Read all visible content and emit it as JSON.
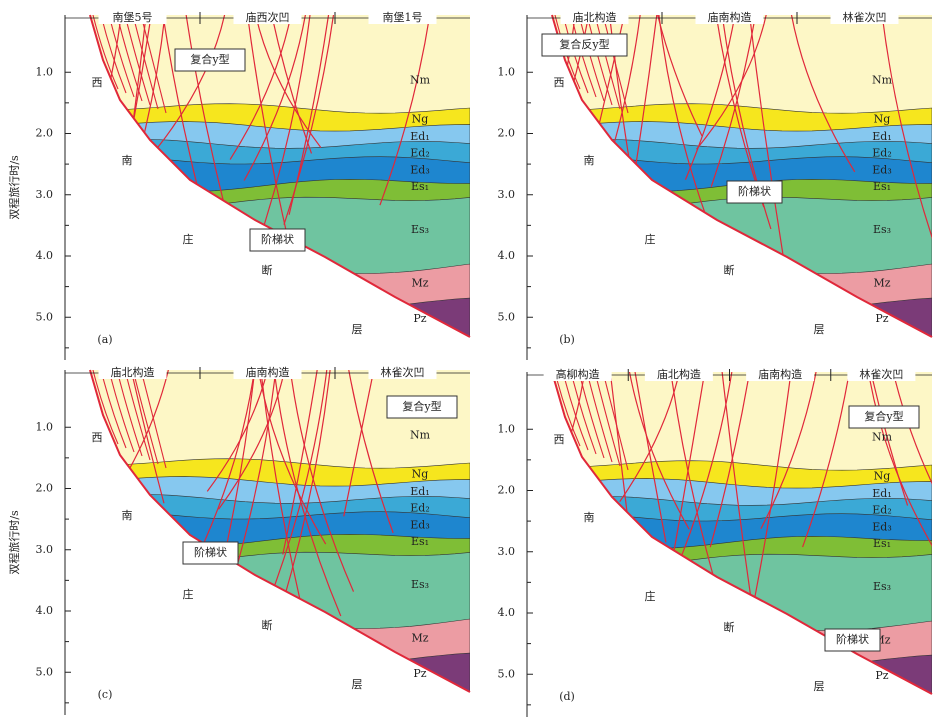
{
  "panels": [
    {
      "panel_label": "(a)",
      "top_labels": [
        "南堡5号",
        "庙西次凹",
        "南堡1号"
      ],
      "y_axis_title": "双程旅行时/s",
      "y_ticks": [
        "1.0",
        "2.0",
        "3.0",
        "4.0",
        "5.0"
      ],
      "layer_labels": [
        "Nm",
        "Ng",
        "Ed₁",
        "Ed₂",
        "Ed₃",
        "Es₁",
        "Es₃",
        "Mz",
        "Pz"
      ],
      "fault_labels": [
        "西",
        "南",
        "庄",
        "断",
        "层"
      ],
      "annotations": [
        "复合y型",
        "阶梯状"
      ]
    },
    {
      "panel_label": "(b)",
      "top_labels": [
        "庙北构造",
        "庙南构造",
        "林雀次凹"
      ],
      "y_ticks": [
        "1.0",
        "2.0",
        "3.0",
        "4.0",
        "5.0"
      ],
      "layer_labels": [
        "Nm",
        "Ng",
        "Ed₁",
        "Ed₂",
        "Ed₃",
        "Es₁",
        "Es₃",
        "Mz",
        "Pz"
      ],
      "fault_labels": [
        "西",
        "南",
        "庄",
        "断",
        "层"
      ],
      "annotations": [
        "复合反y型",
        "阶梯状"
      ]
    },
    {
      "panel_label": "(c)",
      "top_labels": [
        "庙北构造",
        "庙南构造",
        "林雀次凹"
      ],
      "y_axis_title": "双程旅行时/s",
      "y_ticks": [
        "1.0",
        "2.0",
        "3.0",
        "4.0",
        "5.0"
      ],
      "layer_labels": [
        "Nm",
        "Ng",
        "Ed₁",
        "Ed₂",
        "Ed₃",
        "Es₁",
        "Es₃",
        "Mz",
        "Pz"
      ],
      "fault_labels": [
        "西",
        "南",
        "庄",
        "断",
        "层"
      ],
      "annotations": [
        "复合y型",
        "阶梯状"
      ]
    },
    {
      "panel_label": "(d)",
      "top_labels": [
        "高柳构造",
        "庙北构造",
        "庙南构造",
        "林雀次凹"
      ],
      "y_ticks": [
        "1.0",
        "2.0",
        "3.0",
        "4.0",
        "5.0"
      ],
      "layer_labels": [
        "Nm",
        "Ng",
        "Ed₁",
        "Ed₂",
        "Ed₃",
        "Es₁",
        "Es₃",
        "Mz",
        "Pz"
      ],
      "fault_labels": [
        "西",
        "南",
        "庄",
        "断",
        "层"
      ],
      "annotations": [
        "复合y型",
        "阶梯状"
      ]
    }
  ]
}
